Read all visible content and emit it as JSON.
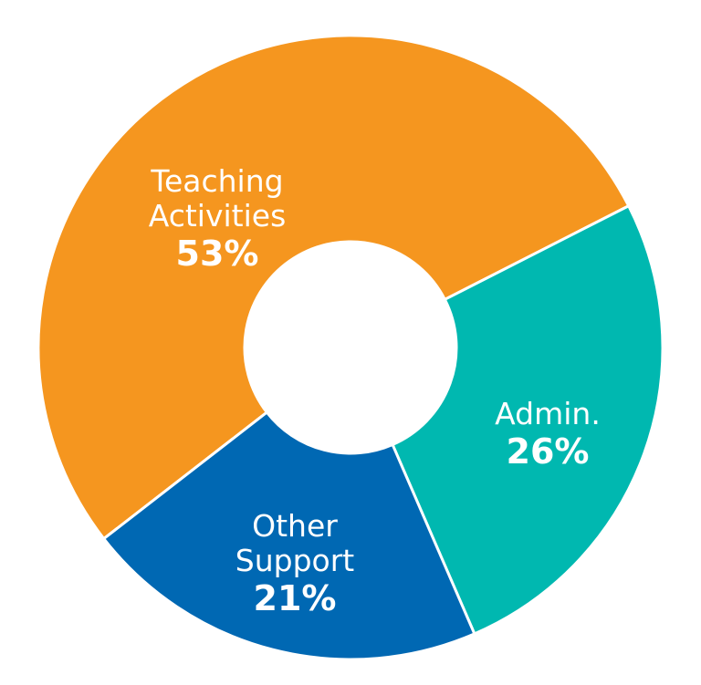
{
  "chart_data": {
    "type": "donut",
    "categories": [
      "Teaching Activities",
      "Admin.",
      "Other Support"
    ],
    "values": [
      53,
      26,
      21
    ],
    "value_labels": [
      "53%",
      "26%",
      "21%"
    ],
    "colors": [
      "#f5961f",
      "#00b8b0",
      "#0068b3"
    ]
  }
}
